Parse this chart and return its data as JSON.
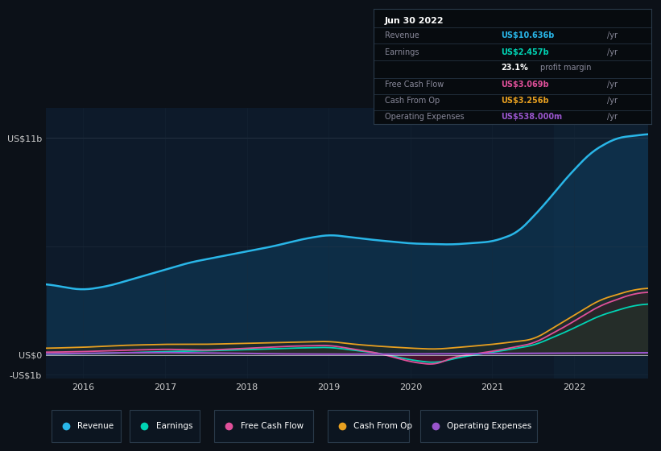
{
  "bg_color": "#0c1118",
  "plot_bg_color": "#0d1a2a",
  "highlight_bg": "#122030",
  "ylabel_top": "US$11b",
  "ylabel_zero": "US$0",
  "ylabel_neg": "-US$1b",
  "xlim": [
    2015.55,
    2022.9
  ],
  "ylim": [
    -1.2,
    12.5
  ],
  "xtick_years": [
    2016,
    2017,
    2018,
    2019,
    2020,
    2021,
    2022
  ],
  "colors": {
    "revenue": "#29b6e8",
    "revenue_fill": "#1a4f6e",
    "earnings": "#00d4b4",
    "earnings_fill": "#00504040",
    "free_cash_flow": "#e0509a",
    "free_cash_flow_fill": "#60203040",
    "cash_from_op": "#e8a020",
    "cash_from_op_fill": "#50381040",
    "operating_expenses": "#9955cc"
  },
  "tooltip": {
    "date": "Jun 30 2022",
    "revenue_label": "Revenue",
    "revenue_value": "US$10.636b",
    "earnings_label": "Earnings",
    "earnings_value": "US$2.457b",
    "margin_value": "23.1%",
    "margin_label": "profit margin",
    "fcf_label": "Free Cash Flow",
    "fcf_value": "US$3.069b",
    "cop_label": "Cash From Op",
    "cop_value": "US$3.256b",
    "opex_label": "Operating Expenses",
    "opex_value": "US$538.000m"
  },
  "legend_items": [
    "Revenue",
    "Earnings",
    "Free Cash Flow",
    "Cash From Op",
    "Operating Expenses"
  ],
  "legend_colors": [
    "#29b6e8",
    "#00d4b4",
    "#e0509a",
    "#e8a020",
    "#9955cc"
  ]
}
